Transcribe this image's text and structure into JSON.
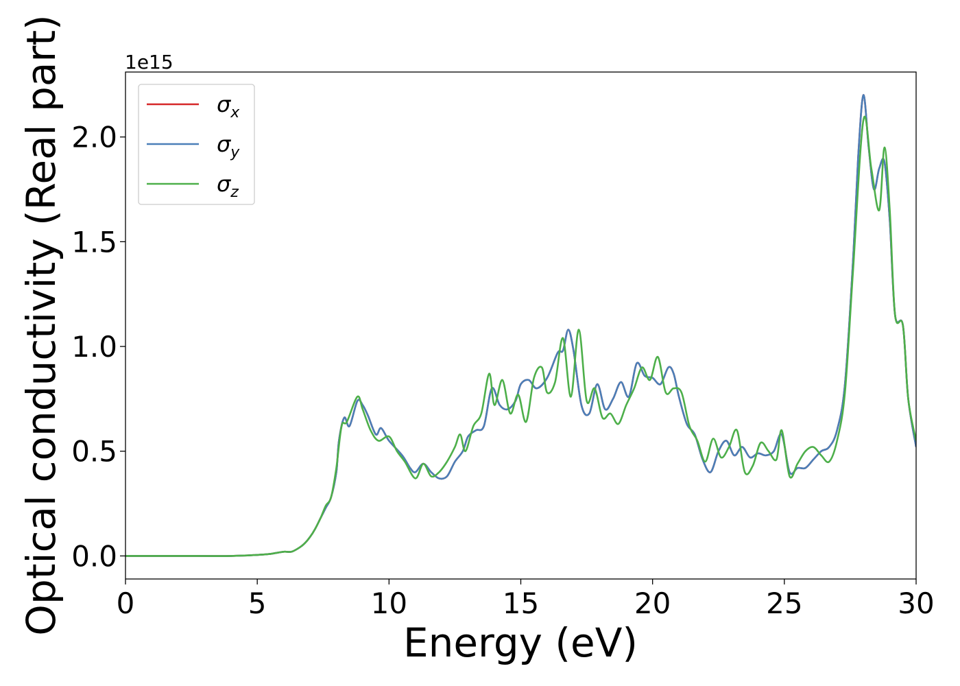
{
  "chart_data": {
    "type": "line",
    "xlabel": "Energy (eV)",
    "ylabel": "Optical conductivity (Real part)",
    "offset_label": "1e15",
    "xlim": [
      0,
      30
    ],
    "ylim": [
      -0.11,
      2.31
    ],
    "x_ticks": [
      0,
      5,
      10,
      15,
      20,
      25,
      30
    ],
    "x_tick_labels": [
      "0",
      "5",
      "10",
      "15",
      "20",
      "25",
      "30"
    ],
    "y_ticks": [
      0.0,
      0.5,
      1.0,
      1.5,
      2.0
    ],
    "y_tick_labels": [
      "0.0",
      "0.5",
      "1.0",
      "1.5",
      "2.0"
    ],
    "grid": false,
    "legend_position": "top-left",
    "series": [
      {
        "name": "σx",
        "base": "σ",
        "sub": "x",
        "color": "#d62728",
        "x": [
          0,
          2,
          4,
          5,
          5.5,
          6,
          6.3,
          6.6,
          6.8,
          7,
          7.2,
          7.4,
          7.6,
          7.8,
          8,
          8.1,
          8.3,
          8.5,
          8.8,
          9,
          9.2,
          9.5,
          9.7,
          10,
          10.5,
          10.8,
          11,
          11.3,
          11.6,
          11.9,
          12.2,
          12.5,
          12.8,
          13,
          13.3,
          13.6,
          13.9,
          14.2,
          14.5,
          14.8,
          15,
          15.3,
          15.6,
          16,
          16.4,
          16.6,
          16.8,
          17,
          17.3,
          17.6,
          17.9,
          18.2,
          18.5,
          18.8,
          19.1,
          19.4,
          19.7,
          20,
          20.3,
          20.6,
          20.8,
          21,
          21.3,
          21.6,
          21.9,
          22.2,
          22.5,
          22.8,
          23.1,
          23.4,
          23.7,
          24,
          24.3,
          24.6,
          24.9,
          25.2,
          25.5,
          25.8,
          26.1,
          26.4,
          26.7,
          27,
          27.3,
          27.6,
          27.8,
          28,
          28.2,
          28.4,
          28.6,
          28.8,
          29,
          29.2,
          29.5,
          29.7,
          30
        ],
        "y": [
          0,
          0,
          0,
          0.005,
          0.01,
          0.02,
          0.02,
          0.04,
          0.06,
          0.09,
          0.13,
          0.18,
          0.23,
          0.28,
          0.4,
          0.55,
          0.66,
          0.62,
          0.74,
          0.72,
          0.67,
          0.58,
          0.61,
          0.55,
          0.48,
          0.42,
          0.4,
          0.44,
          0.4,
          0.37,
          0.38,
          0.45,
          0.5,
          0.57,
          0.6,
          0.62,
          0.8,
          0.72,
          0.7,
          0.74,
          0.82,
          0.84,
          0.8,
          0.85,
          0.97,
          0.98,
          1.08,
          0.98,
          0.72,
          0.68,
          0.82,
          0.7,
          0.75,
          0.83,
          0.76,
          0.92,
          0.86,
          0.85,
          0.82,
          0.9,
          0.87,
          0.76,
          0.63,
          0.58,
          0.46,
          0.4,
          0.5,
          0.55,
          0.48,
          0.52,
          0.47,
          0.49,
          0.48,
          0.5,
          0.58,
          0.4,
          0.42,
          0.42,
          0.46,
          0.5,
          0.52,
          0.6,
          0.82,
          1.4,
          1.9,
          2.2,
          1.95,
          1.75,
          1.85,
          1.88,
          1.6,
          1.15,
          1.1,
          0.75,
          0.52
        ]
      },
      {
        "name": "σy",
        "base": "σ",
        "sub": "y",
        "color": "#4a7fb8",
        "x": [
          0,
          2,
          4,
          5,
          5.5,
          6,
          6.3,
          6.6,
          6.8,
          7,
          7.2,
          7.4,
          7.6,
          7.8,
          8,
          8.1,
          8.3,
          8.5,
          8.8,
          9,
          9.2,
          9.5,
          9.7,
          10,
          10.5,
          10.8,
          11,
          11.3,
          11.6,
          11.9,
          12.2,
          12.5,
          12.8,
          13,
          13.3,
          13.6,
          13.9,
          14.2,
          14.5,
          14.8,
          15,
          15.3,
          15.6,
          16,
          16.4,
          16.6,
          16.8,
          17,
          17.3,
          17.6,
          17.9,
          18.2,
          18.5,
          18.8,
          19.1,
          19.4,
          19.7,
          20,
          20.3,
          20.6,
          20.8,
          21,
          21.3,
          21.6,
          21.9,
          22.2,
          22.5,
          22.8,
          23.1,
          23.4,
          23.7,
          24,
          24.3,
          24.6,
          24.9,
          25.2,
          25.5,
          25.8,
          26.1,
          26.4,
          26.7,
          27,
          27.3,
          27.6,
          27.8,
          28,
          28.2,
          28.4,
          28.6,
          28.8,
          29,
          29.2,
          29.5,
          29.7,
          30
        ],
        "y": [
          0,
          0,
          0,
          0.005,
          0.01,
          0.02,
          0.02,
          0.04,
          0.06,
          0.09,
          0.13,
          0.18,
          0.23,
          0.28,
          0.4,
          0.55,
          0.66,
          0.62,
          0.74,
          0.72,
          0.67,
          0.58,
          0.61,
          0.55,
          0.48,
          0.42,
          0.4,
          0.44,
          0.4,
          0.37,
          0.38,
          0.45,
          0.5,
          0.57,
          0.6,
          0.62,
          0.8,
          0.72,
          0.7,
          0.74,
          0.82,
          0.84,
          0.8,
          0.85,
          0.97,
          0.98,
          1.08,
          0.98,
          0.72,
          0.68,
          0.82,
          0.7,
          0.75,
          0.83,
          0.76,
          0.92,
          0.86,
          0.85,
          0.82,
          0.9,
          0.87,
          0.76,
          0.63,
          0.58,
          0.46,
          0.4,
          0.5,
          0.55,
          0.48,
          0.52,
          0.47,
          0.49,
          0.48,
          0.5,
          0.58,
          0.4,
          0.42,
          0.42,
          0.46,
          0.5,
          0.52,
          0.6,
          0.82,
          1.4,
          1.9,
          2.2,
          1.95,
          1.75,
          1.85,
          1.88,
          1.6,
          1.15,
          1.1,
          0.75,
          0.52
        ]
      },
      {
        "name": "σz",
        "base": "σ",
        "sub": "z",
        "color": "#4daf4a",
        "x": [
          0,
          2,
          4,
          5,
          5.5,
          6,
          6.3,
          6.6,
          6.8,
          7,
          7.2,
          7.4,
          7.6,
          7.8,
          8,
          8.2,
          8.4,
          8.8,
          9,
          9.3,
          9.6,
          10,
          10.3,
          10.6,
          11,
          11.3,
          11.6,
          11.9,
          12.2,
          12.5,
          12.7,
          12.9,
          13.2,
          13.5,
          13.8,
          14,
          14.3,
          14.6,
          14.9,
          15.2,
          15.5,
          15.8,
          16,
          16.3,
          16.6,
          16.9,
          17.2,
          17.5,
          17.8,
          18.1,
          18.4,
          18.7,
          19,
          19.3,
          19.6,
          19.9,
          20.2,
          20.5,
          20.8,
          21.1,
          21.4,
          21.7,
          22,
          22.3,
          22.6,
          22.9,
          23.2,
          23.5,
          23.8,
          24.1,
          24.4,
          24.7,
          24.9,
          25.2,
          25.5,
          25.8,
          26.1,
          26.4,
          26.7,
          27,
          27.3,
          27.6,
          28,
          28.3,
          28.6,
          28.8,
          29,
          29.2,
          29.5,
          29.7,
          30
        ],
        "y": [
          0,
          0,
          0,
          0.005,
          0.01,
          0.02,
          0.02,
          0.04,
          0.06,
          0.09,
          0.13,
          0.18,
          0.24,
          0.28,
          0.42,
          0.62,
          0.64,
          0.76,
          0.7,
          0.6,
          0.55,
          0.57,
          0.5,
          0.45,
          0.37,
          0.44,
          0.38,
          0.4,
          0.45,
          0.52,
          0.58,
          0.5,
          0.62,
          0.68,
          0.87,
          0.72,
          0.84,
          0.68,
          0.77,
          0.64,
          0.85,
          0.9,
          0.78,
          0.83,
          1.04,
          0.76,
          1.08,
          0.74,
          0.8,
          0.66,
          0.68,
          0.63,
          0.72,
          0.8,
          0.9,
          0.84,
          0.95,
          0.78,
          0.8,
          0.78,
          0.62,
          0.55,
          0.45,
          0.56,
          0.47,
          0.52,
          0.6,
          0.4,
          0.43,
          0.54,
          0.5,
          0.46,
          0.6,
          0.38,
          0.44,
          0.5,
          0.52,
          0.48,
          0.45,
          0.55,
          0.78,
          1.35,
          2.08,
          1.85,
          1.65,
          1.95,
          1.65,
          1.15,
          1.1,
          0.75,
          0.55
        ]
      }
    ]
  }
}
